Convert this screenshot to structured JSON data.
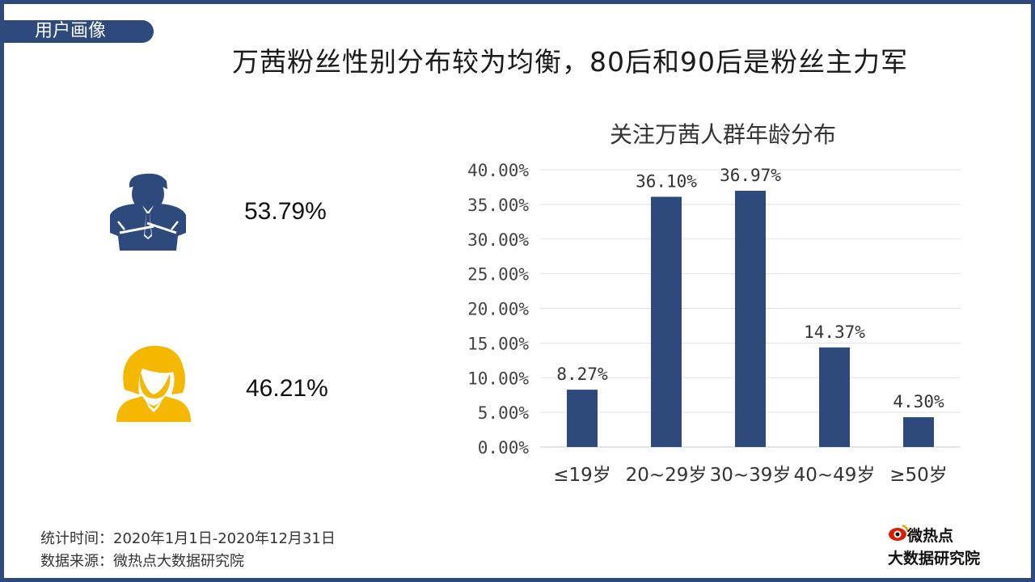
{
  "header": {
    "tag": "用户画像",
    "title": "万茜粉丝性别分布较为均衡，80后和90后是粉丝主力军"
  },
  "gender": {
    "male": {
      "icon": "male-user-icon",
      "value": "53.79%",
      "color": "#2e4a7c"
    },
    "female": {
      "icon": "female-user-icon",
      "value": "46.21%",
      "color": "#f5b800"
    }
  },
  "chart_data": {
    "type": "bar",
    "title": "关注万茜人群年龄分布",
    "categories": [
      "≤19岁",
      "20~29岁",
      "30~39岁",
      "40~49岁",
      "≥50岁"
    ],
    "values": [
      8.27,
      36.1,
      36.97,
      14.37,
      4.3
    ],
    "data_labels": [
      "8.27%",
      "36.10%",
      "36.97%",
      "14.37%",
      "4.30%"
    ],
    "ylim": [
      0,
      40
    ],
    "yticks": [
      "0.00%",
      "5.00%",
      "10.00%",
      "15.00%",
      "20.00%",
      "25.00%",
      "30.00%",
      "35.00%",
      "40.00%"
    ],
    "ytick_values": [
      0,
      5,
      10,
      15,
      20,
      25,
      30,
      35,
      40
    ],
    "bar_color": "#2e4a7c",
    "grid": true,
    "xlabel": "",
    "ylabel": ""
  },
  "footer": {
    "period": "统计时间：2020年1月1日-2020年12月31日",
    "source": "数据来源：微热点大数据研究院"
  },
  "logo": {
    "top": "微热点",
    "bottom": "大数据研究院",
    "icon": "eye-logo-icon"
  },
  "colors": {
    "accent": "#2e4a7c",
    "female": "#f5b800"
  }
}
